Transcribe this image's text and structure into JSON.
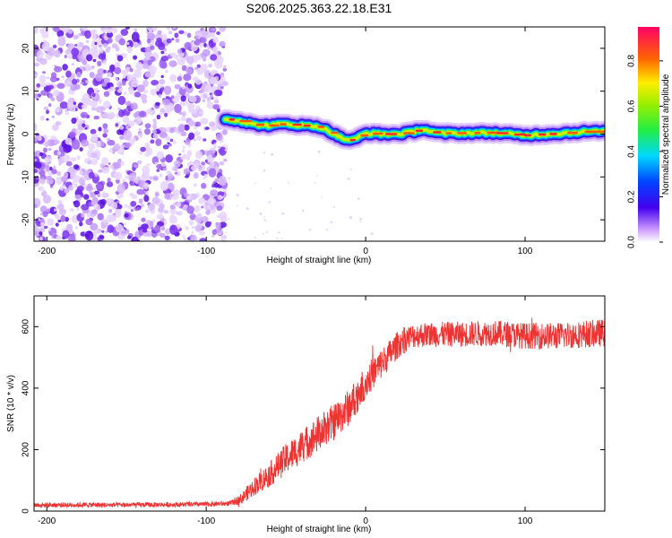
{
  "chart_data": [
    {
      "type": "heatmap",
      "title": "S206.2025.363.22.18.E31",
      "xlabel": "Height of straight line (km)",
      "ylabel": "Frequency (Hz)",
      "xlim": [
        -208,
        150
      ],
      "ylim": [
        -25,
        25
      ],
      "x_ticks": [
        -200,
        -100,
        0,
        100
      ],
      "y_ticks": [
        -20,
        -10,
        0,
        10,
        20
      ],
      "noise_region_x": [
        -208,
        -88
      ],
      "signal_track": {
        "x": [
          -88,
          -80,
          -70,
          -60,
          -50,
          -40,
          -30,
          -22,
          -15,
          -8,
          0,
          10,
          20,
          30,
          35,
          45,
          60,
          80,
          100,
          120,
          140,
          150
        ],
        "y": [
          3.5,
          3.2,
          2.2,
          2.0,
          2.4,
          2.0,
          1.8,
          0.5,
          -1.0,
          -1.5,
          0.2,
          0.0,
          0.0,
          0.5,
          1.2,
          0.2,
          0.2,
          0.3,
          -0.3,
          0.1,
          0.6,
          0.5
        ]
      },
      "colorbar": {
        "label": "Normalized spectral amplitude",
        "range": [
          0,
          0.95
        ],
        "ticks": [
          "0.0",
          "0.2",
          "0.4",
          "0.6",
          "0.8"
        ]
      }
    },
    {
      "type": "line",
      "title": "",
      "xlabel": "Height of straight line (km)",
      "ylabel": "SNR (10 * v/v)",
      "xlim": [
        -208,
        150
      ],
      "ylim": [
        0,
        700
      ],
      "x_ticks": [
        -200,
        -100,
        0,
        100
      ],
      "y_ticks": [
        0,
        200,
        400,
        600
      ],
      "color": "#ee3333",
      "trend": {
        "x": [
          -208,
          -150,
          -100,
          -85,
          -78,
          -70,
          -60,
          -50,
          -40,
          -30,
          -20,
          -10,
          0,
          10,
          20,
          25,
          30,
          40,
          60,
          80,
          100,
          120,
          150
        ],
        "y": [
          20,
          20,
          22,
          25,
          40,
          80,
          120,
          170,
          210,
          250,
          290,
          340,
          420,
          480,
          540,
          560,
          570,
          575,
          575,
          580,
          570,
          570,
          580
        ]
      },
      "noise_amp": {
        "x": [
          -208,
          -85,
          -70,
          -50,
          -30,
          -10,
          10,
          30,
          150
        ],
        "y": [
          8,
          8,
          30,
          50,
          60,
          60,
          50,
          40,
          45
        ]
      }
    }
  ]
}
